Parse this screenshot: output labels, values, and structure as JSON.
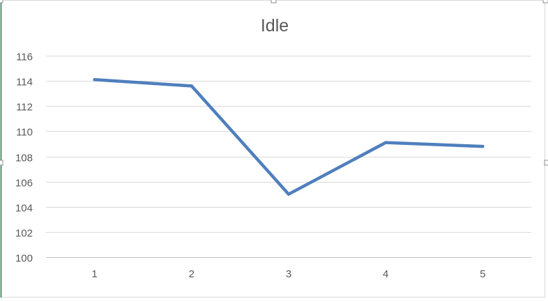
{
  "chart_data": {
    "type": "line",
    "title": "Idle",
    "xlabel": "",
    "ylabel": "",
    "categories": [
      "1",
      "2",
      "3",
      "4",
      "5"
    ],
    "series": [
      {
        "values": [
          114.1,
          113.6,
          105.0,
          109.1,
          108.8
        ],
        "color": "#4f7fbd"
      }
    ],
    "ylim": [
      100,
      116
    ],
    "yticks": [
      100,
      102,
      104,
      106,
      108,
      110,
      112,
      114,
      116
    ],
    "grid": true,
    "legend": "none"
  }
}
